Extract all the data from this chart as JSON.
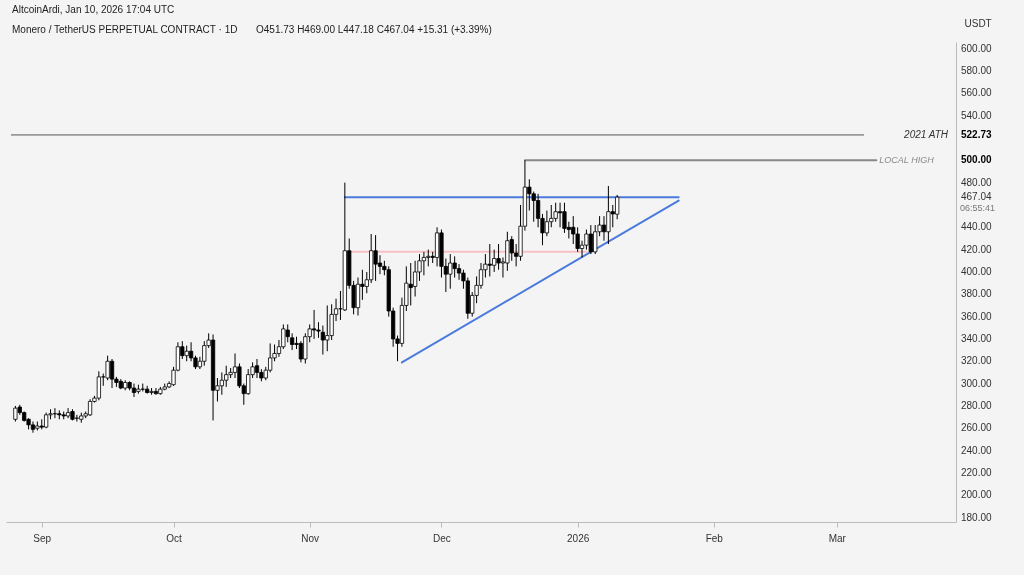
{
  "chart_data": {
    "type": "candlestick",
    "title": "Monero / TetherUS PERPETUAL CONTRACT · 1D",
    "ylabel": "USDT",
    "annotations": [
      "AltcoinArdi, Jan 10, 2026 17:04 UTC",
      "O451.73 H469.00 L447.18 C467.04 +15.31 (+3.39%)",
      "06:55:41"
    ],
    "x": [
      "2025-08-26",
      "2025-08-27",
      "2025-08-28",
      "2025-08-29",
      "2025-08-30",
      "2025-08-31",
      "2025-09-01",
      "2025-09-02",
      "2025-09-03",
      "2025-09-04",
      "2025-09-05",
      "2025-09-06",
      "2025-09-07",
      "2025-09-08",
      "2025-09-09",
      "2025-09-10",
      "2025-09-11",
      "2025-09-12",
      "2025-09-13",
      "2025-09-14",
      "2025-09-15",
      "2025-09-16",
      "2025-09-17",
      "2025-09-18",
      "2025-09-19",
      "2025-09-20",
      "2025-09-21",
      "2025-09-22",
      "2025-09-23",
      "2025-09-24",
      "2025-09-25",
      "2025-09-26",
      "2025-09-27",
      "2025-09-28",
      "2025-09-29",
      "2025-09-30",
      "2025-10-01",
      "2025-10-02",
      "2025-10-03",
      "2025-10-04",
      "2025-10-05",
      "2025-10-06",
      "2025-10-07",
      "2025-10-08",
      "2025-10-09",
      "2025-10-10",
      "2025-10-11",
      "2025-10-12",
      "2025-10-13",
      "2025-10-14",
      "2025-10-15",
      "2025-10-16",
      "2025-10-17",
      "2025-10-18",
      "2025-10-19",
      "2025-10-20",
      "2025-10-21",
      "2025-10-22",
      "2025-10-23",
      "2025-10-24",
      "2025-10-25",
      "2025-10-26",
      "2025-10-27",
      "2025-10-28",
      "2025-10-29",
      "2025-10-30",
      "2025-10-31",
      "2025-11-01",
      "2025-11-02",
      "2025-11-03",
      "2025-11-04",
      "2025-11-05",
      "2025-11-06",
      "2025-11-07",
      "2025-11-08",
      "2025-11-09",
      "2025-11-10",
      "2025-11-11",
      "2025-11-12",
      "2025-11-13",
      "2025-11-14",
      "2025-11-15",
      "2025-11-16",
      "2025-11-17",
      "2025-11-18",
      "2025-11-19",
      "2025-11-20",
      "2025-11-21",
      "2025-11-22",
      "2025-11-23",
      "2025-11-24",
      "2025-11-25",
      "2025-11-26",
      "2025-11-27",
      "2025-11-28",
      "2025-11-29",
      "2025-11-30",
      "2025-12-01",
      "2025-12-02",
      "2025-12-03",
      "2025-12-04",
      "2025-12-05",
      "2025-12-06",
      "2025-12-07",
      "2025-12-08",
      "2025-12-09",
      "2025-12-10",
      "2025-12-11",
      "2025-12-12",
      "2025-12-13",
      "2025-12-14",
      "2025-12-15",
      "2025-12-16",
      "2025-12-17",
      "2025-12-18",
      "2025-12-19",
      "2025-12-20",
      "2025-12-21",
      "2025-12-22",
      "2025-12-23",
      "2025-12-24",
      "2025-12-25",
      "2025-12-26",
      "2025-12-27",
      "2025-12-28",
      "2025-12-29",
      "2025-12-30",
      "2025-12-31",
      "2026-01-01",
      "2026-01-02",
      "2026-01-03",
      "2026-01-04",
      "2026-01-05",
      "2026-01-06",
      "2026-01-07",
      "2026-01-08",
      "2026-01-09",
      "2026-01-10"
    ],
    "ohlc": [
      [
        268,
        280,
        266,
        278
      ],
      [
        279,
        281,
        272,
        274
      ],
      [
        274,
        275,
        266,
        267
      ],
      [
        268,
        269,
        259,
        263
      ],
      [
        263,
        266,
        256,
        259
      ],
      [
        260,
        266,
        258,
        262
      ],
      [
        262,
        268,
        259,
        261
      ],
      [
        261,
        274,
        260,
        272
      ],
      [
        272,
        277,
        268,
        273
      ],
      [
        273,
        278,
        269,
        273
      ],
      [
        273,
        276,
        268,
        272
      ],
      [
        272,
        275,
        268,
        271
      ],
      [
        271,
        278,
        269,
        274
      ],
      [
        275,
        277,
        267,
        268
      ],
      [
        269,
        272,
        266,
        269
      ],
      [
        268,
        274,
        265,
        271
      ],
      [
        271,
        275,
        269,
        273
      ],
      [
        272,
        286,
        271,
        284
      ],
      [
        284,
        289,
        283,
        287
      ],
      [
        287,
        311,
        285,
        306
      ],
      [
        306,
        309,
        298,
        306
      ],
      [
        305,
        325,
        303,
        320
      ],
      [
        320,
        322,
        296,
        304
      ],
      [
        304,
        306,
        297,
        301
      ],
      [
        302,
        304,
        295,
        296
      ],
      [
        296,
        303,
        294,
        301
      ],
      [
        301,
        302,
        294,
        296
      ],
      [
        296,
        300,
        288,
        292
      ],
      [
        293,
        299,
        291,
        295
      ],
      [
        295,
        300,
        293,
        295
      ],
      [
        295,
        298,
        291,
        292
      ],
      [
        292,
        296,
        290,
        293
      ],
      [
        293,
        296,
        290,
        291
      ],
      [
        291,
        297,
        290,
        295
      ],
      [
        295,
        300,
        294,
        297
      ],
      [
        297,
        302,
        296,
        300
      ],
      [
        299,
        315,
        298,
        312
      ],
      [
        312,
        337,
        311,
        333
      ],
      [
        333,
        338,
        322,
        325
      ],
      [
        325,
        334,
        320,
        329
      ],
      [
        329,
        337,
        320,
        323
      ],
      [
        323,
        325,
        313,
        315
      ],
      [
        315,
        324,
        313,
        320
      ],
      [
        320,
        338,
        316,
        334
      ],
      [
        334,
        345,
        332,
        339
      ],
      [
        339,
        344,
        267,
        294
      ],
      [
        294,
        305,
        284,
        298
      ],
      [
        298,
        310,
        290,
        303
      ],
      [
        303,
        316,
        297,
        308
      ],
      [
        308,
        314,
        305,
        310
      ],
      [
        310,
        327,
        305,
        315
      ],
      [
        315,
        318,
        296,
        298
      ],
      [
        298,
        300,
        281,
        291
      ],
      [
        291,
        313,
        290,
        308
      ],
      [
        308,
        319,
        305,
        315
      ],
      [
        316,
        322,
        305,
        310
      ],
      [
        310,
        313,
        302,
        305
      ],
      [
        305,
        315,
        303,
        312
      ],
      [
        312,
        336,
        310,
        323
      ],
      [
        323,
        335,
        320,
        327
      ],
      [
        327,
        339,
        324,
        333
      ],
      [
        333,
        353,
        331,
        349
      ],
      [
        348,
        353,
        337,
        342
      ],
      [
        341,
        345,
        330,
        335
      ],
      [
        336,
        342,
        331,
        335
      ],
      [
        336,
        338,
        319,
        322
      ],
      [
        322,
        345,
        318,
        342
      ],
      [
        342,
        353,
        337,
        349
      ],
      [
        349,
        366,
        340,
        348
      ],
      [
        348,
        355,
        341,
        347
      ],
      [
        346,
        352,
        326,
        339
      ],
      [
        339,
        370,
        329,
        343
      ],
      [
        343,
        371,
        339,
        362
      ],
      [
        362,
        376,
        356,
        367
      ],
      [
        367,
        383,
        357,
        367
      ],
      [
        366,
        480,
        365,
        419
      ],
      [
        419,
        430,
        385,
        388
      ],
      [
        388,
        392,
        362,
        368
      ],
      [
        368,
        395,
        361,
        389
      ],
      [
        389,
        402,
        375,
        387
      ],
      [
        387,
        400,
        381,
        393
      ],
      [
        393,
        434,
        390,
        419
      ],
      [
        419,
        433,
        392,
        407
      ],
      [
        408,
        415,
        398,
        405
      ],
      [
        405,
        410,
        397,
        402
      ],
      [
        402,
        405,
        360,
        365
      ],
      [
        365,
        368,
        333,
        340
      ],
      [
        340,
        343,
        320,
        336
      ],
      [
        336,
        377,
        333,
        370
      ],
      [
        370,
        405,
        365,
        390
      ],
      [
        389,
        408,
        370,
        386
      ],
      [
        387,
        410,
        378,
        400
      ],
      [
        400,
        416,
        392,
        410
      ],
      [
        410,
        418,
        397,
        413
      ],
      [
        413,
        420,
        405,
        414
      ],
      [
        414,
        418,
        408,
        413
      ],
      [
        413,
        440,
        405,
        435
      ],
      [
        435,
        438,
        395,
        405
      ],
      [
        405,
        412,
        382,
        398
      ],
      [
        398,
        416,
        385,
        408
      ],
      [
        408,
        414,
        395,
        403
      ],
      [
        403,
        407,
        393,
        399
      ],
      [
        399,
        402,
        385,
        392
      ],
      [
        392,
        395,
        358,
        363
      ],
      [
        363,
        382,
        360,
        379
      ],
      [
        379,
        396,
        372,
        388
      ],
      [
        388,
        408,
        385,
        402
      ],
      [
        402,
        416,
        395,
        407
      ],
      [
        407,
        425,
        396,
        406
      ],
      [
        406,
        420,
        400,
        412
      ],
      [
        412,
        425,
        402,
        408
      ],
      [
        408,
        413,
        395,
        409
      ],
      [
        408,
        436,
        401,
        428
      ],
      [
        429,
        432,
        410,
        417
      ],
      [
        417,
        425,
        405,
        414
      ],
      [
        414,
        460,
        410,
        441
      ],
      [
        441,
        500,
        437,
        476
      ],
      [
        476,
        483,
        455,
        470
      ],
      [
        470,
        472,
        445,
        464
      ],
      [
        464,
        470,
        440,
        448
      ],
      [
        448,
        452,
        424,
        435
      ],
      [
        435,
        455,
        432,
        445
      ],
      [
        445,
        460,
        440,
        448
      ],
      [
        448,
        462,
        445,
        454
      ],
      [
        454,
        462,
        440,
        453
      ],
      [
        454,
        462,
        435,
        439
      ],
      [
        440,
        445,
        430,
        438
      ],
      [
        440,
        450,
        425,
        434
      ],
      [
        434,
        440,
        418,
        421
      ],
      [
        421,
        428,
        413,
        424
      ],
      [
        424,
        438,
        420,
        434
      ],
      [
        434,
        442,
        416,
        418
      ],
      [
        418,
        442,
        416,
        436
      ],
      [
        436,
        450,
        432,
        442
      ],
      [
        442,
        450,
        428,
        436
      ],
      [
        436,
        477,
        425,
        454
      ],
      [
        454,
        460,
        440,
        452
      ],
      [
        451.73,
        469,
        447.18,
        467.04
      ]
    ],
    "series": [
      {
        "type": "line",
        "color": "#f6c0c4",
        "x": [
          "2025-11-09",
          "2026-01-03"
        ],
        "values": [
          418,
          418
        ]
      },
      {
        "type": "line",
        "color": "#4a7bdc",
        "x": [
          "2025-11-09",
          "2026-01-24"
        ],
        "values": [
          467,
          467
        ]
      },
      {
        "type": "line",
        "color": "#4a7bdc",
        "x": [
          "2025-11-22",
          "2026-01-24"
        ],
        "values": [
          319,
          464
        ]
      },
      {
        "type": "line",
        "name": "LOCAL HIGH",
        "color": "#888888",
        "x": [
          "2025-12-20",
          "2026-03-10"
        ],
        "values": [
          500,
          500
        ]
      }
    ],
    "ref_lines": [
      {
        "axis": "y",
        "value": 522.73,
        "label": "2021 ATH",
        "color": "#555555"
      }
    ],
    "xlim": [
      "2025-08-25",
      "2026-03-27"
    ],
    "xticks": [
      {
        "value": "2025-09-01",
        "label": "Sep"
      },
      {
        "value": "2025-10-01",
        "label": "Oct"
      },
      {
        "value": "2025-11-01",
        "label": "Nov"
      },
      {
        "value": "2025-12-01",
        "label": "Dec"
      },
      {
        "value": "2026-01-01",
        "label": "2026"
      },
      {
        "value": "2026-02-01",
        "label": "Feb"
      },
      {
        "value": "2026-03-01",
        "label": "Mar"
      }
    ],
    "ylim": [
      176,
      606
    ],
    "yticks": [
      {
        "value": 180,
        "label": "180.00"
      },
      {
        "value": 200,
        "label": "200.00"
      },
      {
        "value": 220,
        "label": "220.00"
      },
      {
        "value": 240,
        "label": "240.00"
      },
      {
        "value": 260,
        "label": "260.00"
      },
      {
        "value": 280,
        "label": "280.00"
      },
      {
        "value": 300,
        "label": "300.00"
      },
      {
        "value": 320,
        "label": "320.00"
      },
      {
        "value": 340,
        "label": "340.00"
      },
      {
        "value": 360,
        "label": "360.00"
      },
      {
        "value": 380,
        "label": "380.00"
      },
      {
        "value": 400,
        "label": "400.00"
      },
      {
        "value": 420,
        "label": "420.00"
      },
      {
        "value": 440,
        "label": "440.00"
      },
      {
        "value": 467.04,
        "label": "467.04"
      },
      {
        "value": 480,
        "label": "480.00"
      },
      {
        "value": 500,
        "label": "500.00"
      },
      {
        "value": 522.73,
        "label": "522.73"
      },
      {
        "value": 540,
        "label": "540.00"
      },
      {
        "value": 560,
        "label": "560.00"
      },
      {
        "value": 580,
        "label": "580.00"
      },
      {
        "value": 600,
        "label": "600.00"
      }
    ],
    "grid": false
  }
}
